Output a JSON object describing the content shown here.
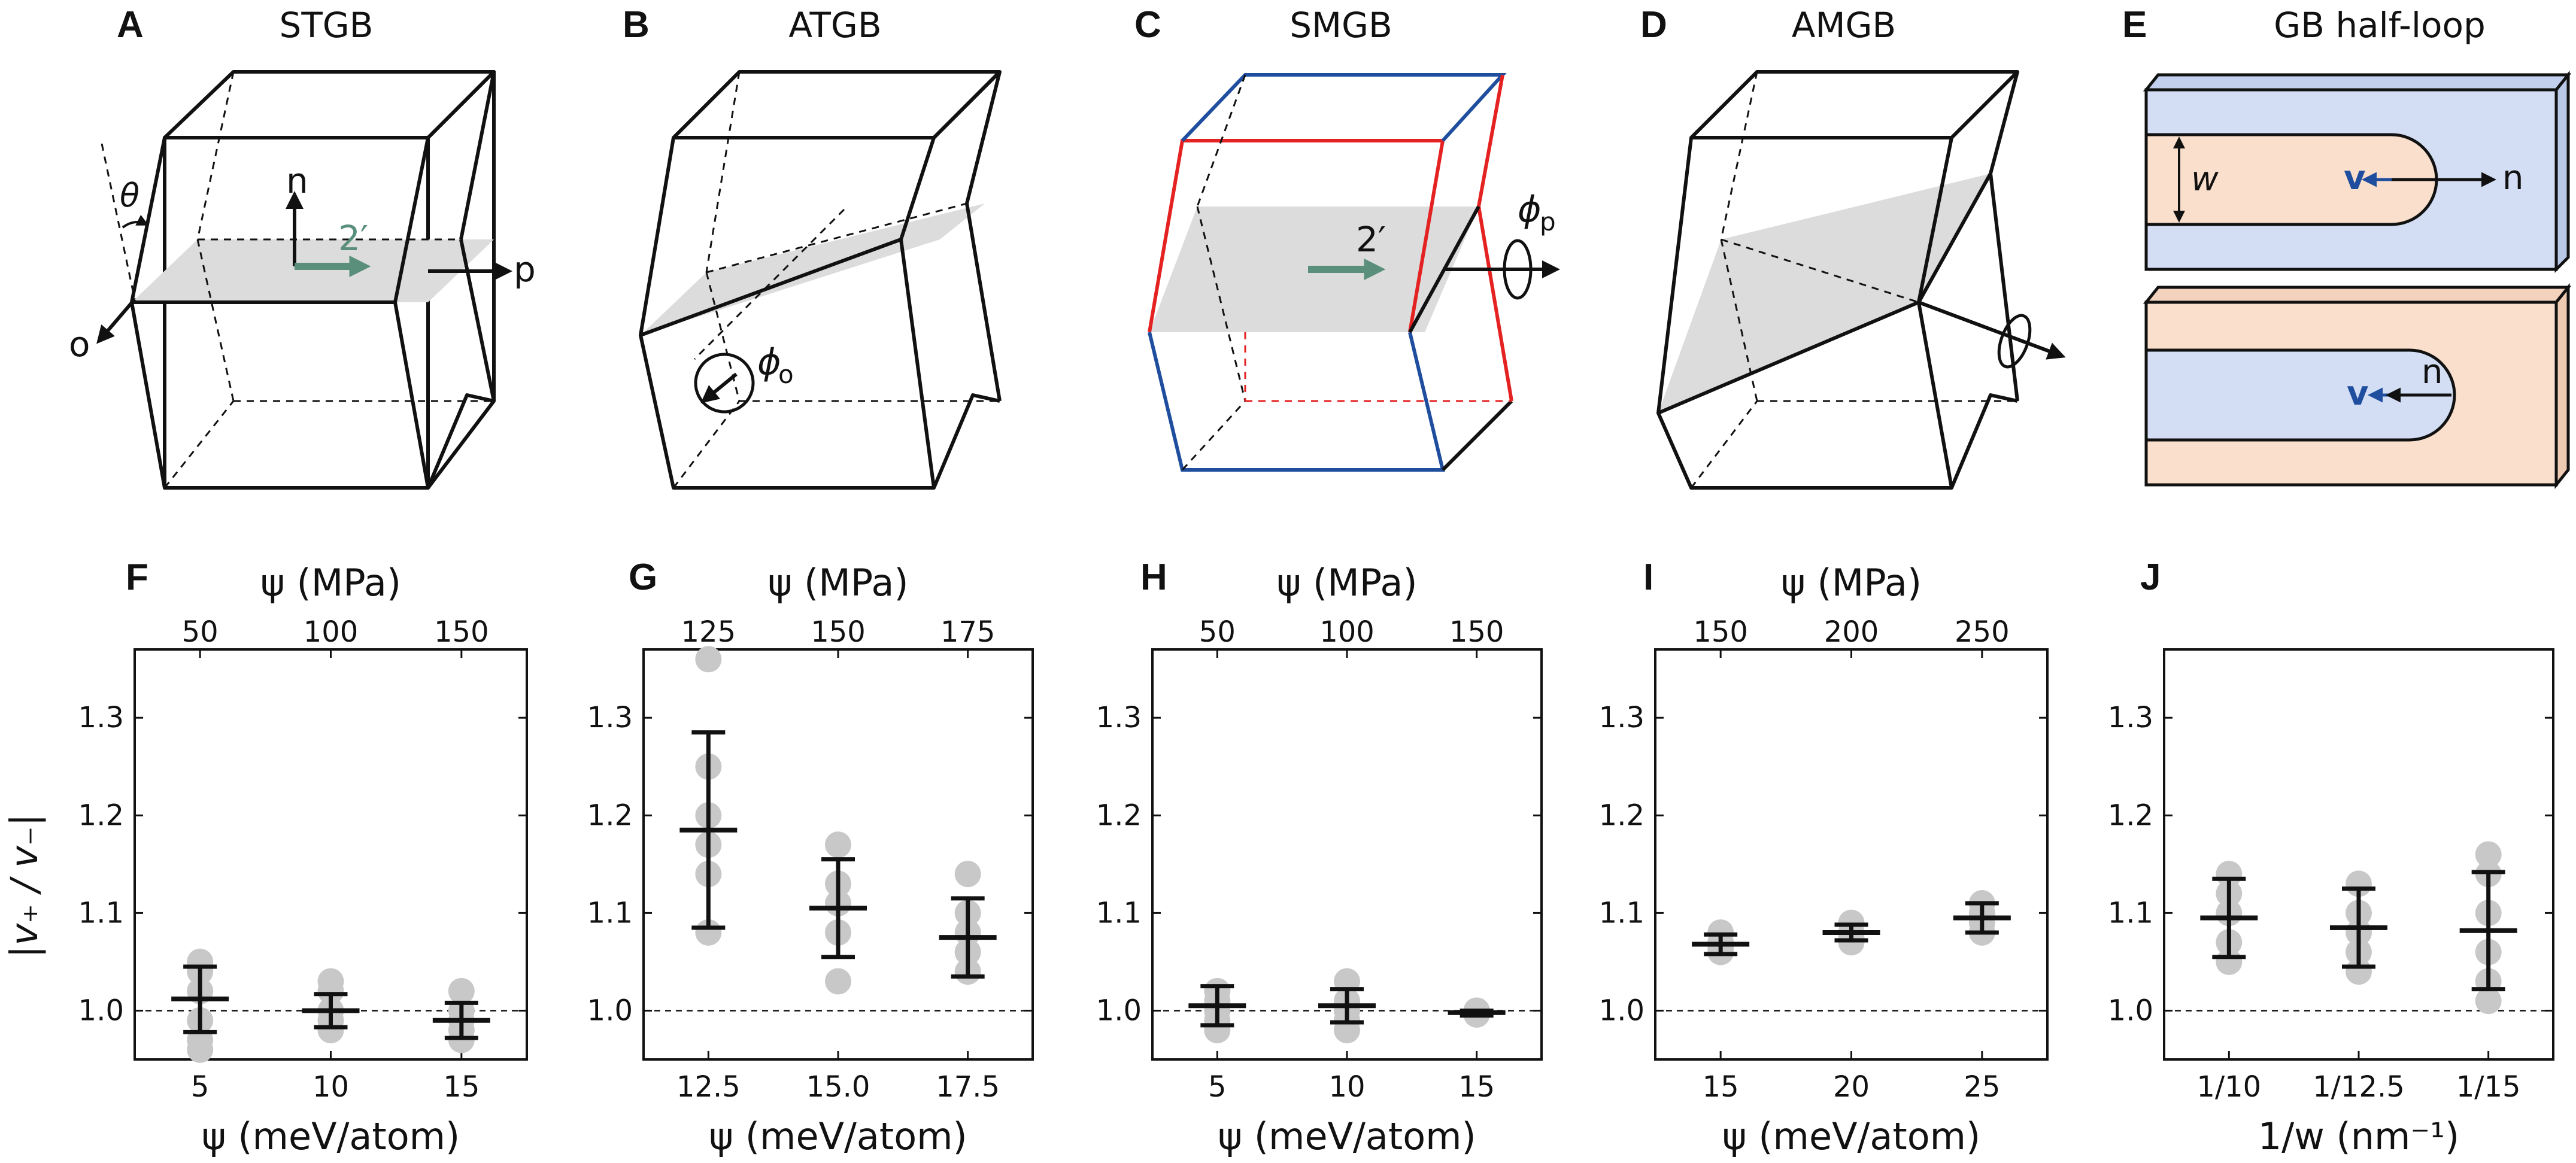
{
  "schematics": [
    {
      "letter": "A",
      "title": "STGB",
      "labels": {
        "n": "n",
        "two": "2′",
        "p": "p",
        "o": "o",
        "theta": "θ"
      }
    },
    {
      "letter": "B",
      "title": "ATGB",
      "labels": {
        "phi_o": "ϕ",
        "phi_o_sub": "o"
      }
    },
    {
      "letter": "C",
      "title": "SMGB",
      "labels": {
        "two": "2′",
        "phi_p": "ϕ",
        "phi_p_sub": "p"
      }
    },
    {
      "letter": "D",
      "title": "AMGB",
      "labels": {}
    },
    {
      "letter": "E",
      "title": "GB half-loop",
      "labels": {
        "w": "w",
        "v1": "v",
        "n1": "n",
        "v2": "v",
        "n2": "n"
      }
    }
  ],
  "colors": {
    "accent_green": "#5a8f7b",
    "accent_red": "#e52222",
    "accent_blue": "#1f4e9e",
    "gb_plane": "#dcdcdc",
    "halfloop_blue": "#d3def4",
    "halfloop_peach": "#f9dfcc",
    "marker": "#c8c8c8"
  },
  "ylabel": "|v₊ / v₋|",
  "chart_data": [
    {
      "type": "scatter",
      "letter": "F",
      "top_axis_title": "ψ (MPa)",
      "top_ticks": [
        "50",
        "100",
        "150"
      ],
      "bottom_axis_title": "ψ (meV/atom)",
      "categories": [
        "5",
        "10",
        "15"
      ],
      "ylim": [
        0.95,
        1.37
      ],
      "yticks": [
        "1.0",
        "1.1",
        "1.2",
        "1.3"
      ],
      "reference_line": 1.0,
      "points": [
        [
          1.05,
          1.04,
          1.02,
          0.99,
          0.97,
          0.96
        ],
        [
          1.03,
          1.02,
          1.0,
          0.98,
          0.99
        ],
        [
          1.02,
          1.0,
          0.99,
          0.98,
          0.97
        ]
      ],
      "mean": [
        1.012,
        1.0,
        0.99
      ],
      "err_low": [
        0.978,
        0.983,
        0.972
      ],
      "err_high": [
        1.045,
        1.017,
        1.008
      ]
    },
    {
      "type": "scatter",
      "letter": "G",
      "top_axis_title": "ψ (MPa)",
      "top_ticks": [
        "125",
        "150",
        "175"
      ],
      "bottom_axis_title": "ψ (meV/atom)",
      "categories": [
        "12.5",
        "15.0",
        "17.5"
      ],
      "ylim": [
        0.95,
        1.37
      ],
      "yticks": [
        "1.0",
        "1.1",
        "1.2",
        "1.3"
      ],
      "reference_line": 1.0,
      "points": [
        [
          1.36,
          1.25,
          1.2,
          1.17,
          1.14,
          1.08
        ],
        [
          1.17,
          1.13,
          1.11,
          1.08,
          1.03
        ],
        [
          1.14,
          1.1,
          1.08,
          1.06,
          1.04
        ]
      ],
      "mean": [
        1.185,
        1.105,
        1.075
      ],
      "err_low": [
        1.085,
        1.055,
        1.035
      ],
      "err_high": [
        1.285,
        1.155,
        1.115
      ]
    },
    {
      "type": "scatter",
      "letter": "H",
      "top_axis_title": "ψ (MPa)",
      "top_ticks": [
        "50",
        "100",
        "150"
      ],
      "bottom_axis_title": "ψ (meV/atom)",
      "categories": [
        "5",
        "10",
        "15"
      ],
      "ylim": [
        0.95,
        1.37
      ],
      "yticks": [
        "1.0",
        "1.1",
        "1.2",
        "1.3"
      ],
      "reference_line": 1.0,
      "points": [
        [
          1.02,
          1.01,
          1.0,
          0.99,
          0.98
        ],
        [
          1.03,
          1.01,
          1.0,
          0.99,
          0.98
        ],
        [
          1.0,
          1.0,
          0.998,
          0.996
        ]
      ],
      "mean": [
        1.005,
        1.005,
        0.998
      ],
      "err_low": [
        0.985,
        0.988,
        0.995
      ],
      "err_high": [
        1.025,
        1.022,
        1.0
      ]
    },
    {
      "type": "scatter",
      "letter": "I",
      "top_axis_title": "ψ (MPa)",
      "top_ticks": [
        "150",
        "200",
        "250"
      ],
      "bottom_axis_title": "ψ (meV/atom)",
      "categories": [
        "15",
        "20",
        "25"
      ],
      "ylim": [
        0.95,
        1.37
      ],
      "yticks": [
        "1.0",
        "1.1",
        "1.2",
        "1.3"
      ],
      "reference_line": 1.0,
      "points": [
        [
          1.08,
          1.07,
          1.065,
          1.06
        ],
        [
          1.09,
          1.08,
          1.075,
          1.07
        ],
        [
          1.11,
          1.1,
          1.09,
          1.08
        ]
      ],
      "mean": [
        1.068,
        1.08,
        1.095
      ],
      "err_low": [
        1.058,
        1.072,
        1.08
      ],
      "err_high": [
        1.078,
        1.088,
        1.11
      ]
    },
    {
      "type": "scatter",
      "letter": "J",
      "top_axis_title": "",
      "top_ticks": [],
      "bottom_axis_title": "1/w (nm⁻¹)",
      "categories": [
        "1/10",
        "1/12.5",
        "1/15"
      ],
      "ylim": [
        0.95,
        1.37
      ],
      "yticks": [
        "1.0",
        "1.1",
        "1.2",
        "1.3"
      ],
      "reference_line": 1.0,
      "points": [
        [
          1.14,
          1.12,
          1.1,
          1.07,
          1.05
        ],
        [
          1.13,
          1.1,
          1.08,
          1.06,
          1.04
        ],
        [
          1.16,
          1.14,
          1.1,
          1.06,
          1.03,
          1.01
        ]
      ],
      "mean": [
        1.095,
        1.085,
        1.082
      ],
      "err_low": [
        1.055,
        1.045,
        1.022
      ],
      "err_high": [
        1.135,
        1.125,
        1.142
      ]
    }
  ]
}
